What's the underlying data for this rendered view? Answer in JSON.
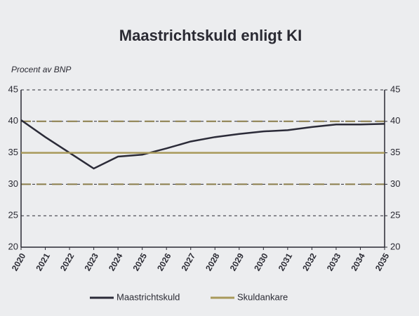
{
  "chart_data": {
    "type": "line",
    "title": "Maastrichtskuld enligt KI",
    "ylabel": "Procent av BNP",
    "categories": [
      "2020",
      "2021",
      "2022",
      "2023",
      "2024",
      "2025",
      "2026",
      "2027",
      "2028",
      "2029",
      "2030",
      "2031",
      "2032",
      "2033",
      "2034",
      "2035"
    ],
    "series": [
      {
        "name": "Maastrichtskuld",
        "color": "#2b2b38",
        "values": [
          40.2,
          37.5,
          35,
          32.5,
          34.4,
          34.7,
          35.7,
          36.8,
          37.5,
          38,
          38.4,
          38.6,
          39.1,
          39.5,
          39.5,
          39.6
        ]
      },
      {
        "name": "Skuldankare",
        "color": "#a8995a",
        "values": [
          35,
          35,
          35,
          35,
          35,
          35,
          35,
          35,
          35,
          35,
          35,
          35,
          35,
          35,
          35,
          35
        ]
      }
    ],
    "reference_lines": {
      "values": [
        30,
        40
      ],
      "color": "#8a7d4a"
    },
    "ylim": [
      20,
      45
    ],
    "yticks": [
      20,
      25,
      30,
      35,
      40,
      45
    ],
    "y2lim": [
      20,
      45
    ],
    "y2ticks": [
      20,
      25,
      30,
      35,
      40,
      45
    ],
    "grid": true
  }
}
